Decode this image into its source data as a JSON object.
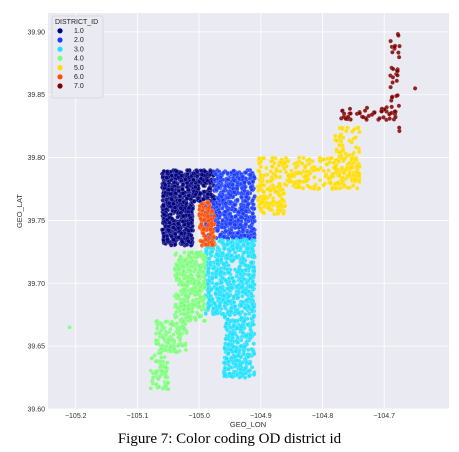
{
  "caption": "Figure 7: Color coding OD district id",
  "chart_data": {
    "type": "scatter",
    "xlabel": "GEO_LON",
    "ylabel": "GEO_LAT",
    "xlim": [
      -105.245,
      -104.595
    ],
    "ylim": [
      39.6,
      39.915
    ],
    "x_ticks": [
      -105.2,
      -105.1,
      -105.0,
      -104.9,
      -104.8,
      -104.7
    ],
    "x_tick_labels": [
      "−105.2",
      "−105.1",
      "−105.0",
      "−104.9",
      "−104.8",
      "−104.7"
    ],
    "y_ticks": [
      39.6,
      39.65,
      39.7,
      39.75,
      39.8,
      39.85,
      39.9
    ],
    "y_tick_labels": [
      "39.60",
      "39.65",
      "39.70",
      "39.75",
      "39.80",
      "39.85",
      "39.90"
    ],
    "grid": true,
    "legend": {
      "title": "DISTRICT_ID",
      "placement": "top-left",
      "entries": [
        {
          "label": "1.0",
          "color": "#00007f"
        },
        {
          "label": "2.0",
          "color": "#1a3cff"
        },
        {
          "label": "3.0",
          "color": "#20e0ff"
        },
        {
          "label": "4.0",
          "color": "#7dff7a"
        },
        {
          "label": "5.0",
          "color": "#ffdd00"
        },
        {
          "label": "6.0",
          "color": "#ff4d00"
        },
        {
          "label": "7.0",
          "color": "#7f0000"
        }
      ]
    },
    "series": [
      {
        "district": "1.0",
        "regions": [
          {
            "lon": [
              -105.06,
              -105.01
            ],
            "lat": [
              39.73,
              39.79
            ],
            "n": 600
          },
          {
            "lon": [
              -105.01,
              -104.975
            ],
            "lat": [
              39.765,
              39.79
            ],
            "n": 160
          }
        ]
      },
      {
        "district": "2.0",
        "regions": [
          {
            "lon": [
              -104.975,
              -104.91
            ],
            "lat": [
              39.735,
              39.79
            ],
            "n": 520
          },
          {
            "lon": [
              -104.99,
              -104.975
            ],
            "lat": [
              39.73,
              39.765
            ],
            "n": 60
          }
        ]
      },
      {
        "district": "3.0",
        "regions": [
          {
            "lon": [
              -104.99,
              -104.91
            ],
            "lat": [
              39.675,
              39.735
            ],
            "n": 580
          },
          {
            "lon": [
              -104.96,
              -104.91
            ],
            "lat": [
              39.625,
              39.675
            ],
            "n": 300
          }
        ]
      },
      {
        "district": "4.0",
        "regions": [
          {
            "lon": [
              -105.04,
              -104.99
            ],
            "lat": [
              39.67,
              39.725
            ],
            "n": 320
          },
          {
            "lon": [
              -105.07,
              -105.02
            ],
            "lat": [
              39.645,
              39.67
            ],
            "n": 110
          },
          {
            "lon": [
              -105.08,
              -105.05
            ],
            "lat": [
              39.615,
              39.645
            ],
            "n": 60
          },
          {
            "lon": [
              -105.21,
              -105.21
            ],
            "lat": [
              39.665,
              39.665
            ],
            "n": 1
          }
        ]
      },
      {
        "district": "5.0",
        "regions": [
          {
            "lon": [
              -104.905,
              -104.74
            ],
            "lat": [
              39.775,
              39.8
            ],
            "n": 260
          },
          {
            "lon": [
              -104.905,
              -104.86
            ],
            "lat": [
              39.755,
              39.775
            ],
            "n": 90
          },
          {
            "lon": [
              -104.78,
              -104.74
            ],
            "lat": [
              39.78,
              39.825
            ],
            "n": 80
          }
        ]
      },
      {
        "district": "6.0",
        "regions": [
          {
            "lon": [
              -105.0,
              -104.975
            ],
            "lat": [
              39.73,
              39.765
            ],
            "n": 110
          }
        ]
      },
      {
        "district": "7.0",
        "regions": [
          {
            "lon": [
              -104.77,
              -104.68
            ],
            "lat": [
              39.83,
              39.84
            ],
            "n": 45
          },
          {
            "lon": [
              -104.69,
              -104.675
            ],
            "lat": [
              39.82,
              39.9
            ],
            "n": 35
          },
          {
            "lon": [
              -104.65,
              -104.65
            ],
            "lat": [
              39.855,
              39.855
            ],
            "n": 1
          }
        ]
      }
    ]
  }
}
